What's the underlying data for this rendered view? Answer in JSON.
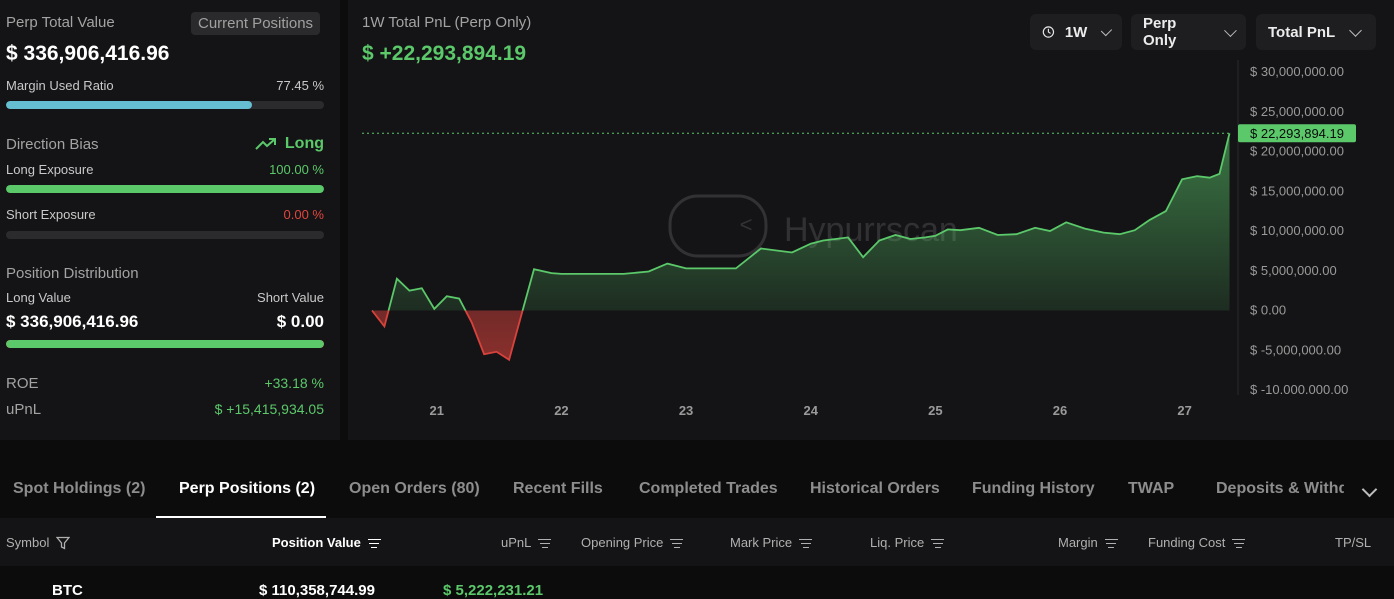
{
  "left": {
    "perp_total_value_label": "Perp Total Value",
    "current_positions_tag": "Current Positions",
    "perp_total_value": "$ 336,906,416.96",
    "margin_used_ratio_label": "Margin Used Ratio",
    "margin_used_ratio": "77.45 %",
    "margin_used_fraction": 0.7745,
    "direction_bias_label": "Direction Bias",
    "direction_bias_value": "Long",
    "long_exposure_label": "Long Exposure",
    "long_exposure_value": "100.00 %",
    "long_exposure_fraction": 1.0,
    "short_exposure_label": "Short Exposure",
    "short_exposure_value": "0.00 %",
    "short_exposure_fraction": 0.0,
    "position_distribution_label": "Position Distribution",
    "long_value_label": "Long Value",
    "short_value_label": "Short Value",
    "long_value": "$ 336,906,416.96",
    "short_value": "$ 0.00",
    "distribution_long_fraction": 1.0,
    "roe_label": "ROE",
    "roe_value": "+33.18 %",
    "upnl_label": "uPnL",
    "upnl_value": "$ +15,415,934.05"
  },
  "chart_panel": {
    "title": "1W Total PnL (Perp Only)",
    "value": "$ +22,293,894.19",
    "timeframe": "1W",
    "filter": "Perp Only",
    "metric": "Total PnL",
    "watermark": "Hypurrscan",
    "current_label": "$ 22,293,894.19"
  },
  "chart_data": {
    "type": "area",
    "title": "1W Total PnL (Perp Only)",
    "y_ticks": [
      "$ 30,000,000.00",
      "$ 25,000,000.00",
      "$ 20,000,000.00",
      "$ 15,000,000.00",
      "$ 10,000,000.00",
      "$ 5,000,000.00",
      "$ 0.00",
      "$ -5,000,000.00",
      "$ -10.000.000.00"
    ],
    "x_ticks": [
      "21",
      "22",
      "23",
      "24",
      "25",
      "26",
      "27"
    ],
    "ylim": [
      -10000000,
      30000000
    ],
    "xlim": [
      20.4,
      27.38
    ],
    "x": [
      20.48,
      20.58,
      20.68,
      20.78,
      20.88,
      20.98,
      21.08,
      21.18,
      21.28,
      21.38,
      21.48,
      21.58,
      21.68,
      21.78,
      21.92,
      22.0,
      22.15,
      22.3,
      22.5,
      22.7,
      22.85,
      23.0,
      23.15,
      23.25,
      23.4,
      23.6,
      23.85,
      24.0,
      24.1,
      24.2,
      24.3,
      24.42,
      24.55,
      24.68,
      24.8,
      24.92,
      25.0,
      25.1,
      25.2,
      25.35,
      25.5,
      25.65,
      25.8,
      25.92,
      26.05,
      26.2,
      26.35,
      26.48,
      26.6,
      26.72,
      26.85,
      26.98,
      27.1,
      27.2,
      27.28,
      27.36
    ],
    "y": [
      0,
      -2000000,
      4000000,
      2500000,
      2800000,
      200000,
      1800000,
      1500000,
      -1500000,
      -5500000,
      -5200000,
      -6200000,
      -500000,
      5200000,
      4700000,
      4600000,
      4600000,
      4600000,
      4600000,
      4900000,
      5900000,
      5300000,
      5300000,
      5300000,
      5300000,
      7800000,
      7300000,
      8400000,
      8800000,
      9000000,
      9200000,
      6700000,
      8800000,
      9500000,
      9000000,
      9200000,
      9400000,
      10200000,
      10100000,
      10400000,
      9500000,
      9600000,
      10400000,
      10000000,
      11100000,
      10300000,
      9800000,
      9600000,
      10100000,
      11400000,
      12500000,
      16500000,
      16900000,
      16700000,
      17200000,
      22293894.19
    ],
    "series": [
      {
        "values": "see y"
      }
    ],
    "reference_line": 22293894.19,
    "colors": {
      "positive": "#5bc86a",
      "negative": "#d8423c"
    },
    "grid": false,
    "legend": "none"
  },
  "tabs": [
    {
      "label": "Spot Holdings (2)"
    },
    {
      "label": "Perp Positions (2)"
    },
    {
      "label": "Open Orders (80)"
    },
    {
      "label": "Recent Fills"
    },
    {
      "label": "Completed Trades"
    },
    {
      "label": "Historical Orders"
    },
    {
      "label": "Funding History"
    },
    {
      "label": "TWAP"
    },
    {
      "label": "Deposits & Withdra"
    }
  ],
  "table": {
    "headers": [
      "Symbol",
      "Position Value",
      "uPnL",
      "Opening Price",
      "Mark Price",
      "Liq. Price",
      "Margin",
      "Funding Cost",
      "TP/SL"
    ],
    "partial_row": {
      "symbol": "BTC",
      "position_value": "$ 110,358,744.99",
      "upnl": "$ 5,222,231.21"
    }
  },
  "colors": {
    "accent_green": "#5bc86a",
    "accent_red": "#e0463e",
    "bar_cyan": "#65bfd0",
    "background": "#0c0c0d",
    "panel": "#141416"
  }
}
